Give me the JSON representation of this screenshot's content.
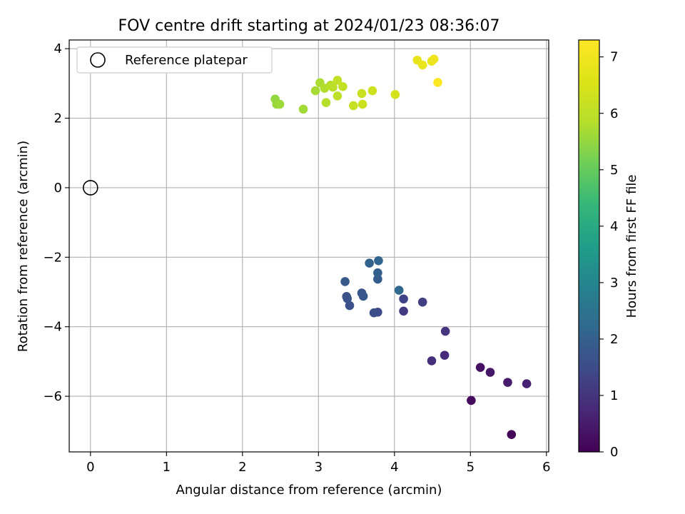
{
  "chart_data": {
    "type": "scatter",
    "title": "FOV centre drift starting at 2024/01/23 08:36:07",
    "xlabel": "Angular distance from reference (arcmin)",
    "ylabel": "Rotation from reference (arcmin)",
    "xlim": [
      -0.28,
      6.03
    ],
    "ylim": [
      -7.6,
      4.25
    ],
    "xticks": [
      0,
      1,
      2,
      3,
      4,
      5,
      6
    ],
    "yticks": [
      -6,
      -4,
      -2,
      0,
      2,
      4
    ],
    "xtick_labels": [
      "0",
      "1",
      "2",
      "3",
      "4",
      "5",
      "6"
    ],
    "ytick_labels": [
      "−6",
      "−4",
      "−2",
      "0",
      "2",
      "4"
    ],
    "grid": true,
    "legend": {
      "position": "top-left",
      "entries": [
        "Reference platepar"
      ]
    },
    "reference_point": {
      "x": 0,
      "y": 0
    },
    "colorbar": {
      "label": "Hours from first FF file",
      "min": 0,
      "max": 7.3,
      "ticks": [
        0,
        1,
        2,
        3,
        4,
        5,
        6,
        7
      ],
      "tick_labels": [
        "0",
        "1",
        "2",
        "3",
        "4",
        "5",
        "6",
        "7"
      ],
      "colormap": "viridis"
    },
    "points": [
      {
        "x": 5.54,
        "y": -7.1,
        "t": 0.1
      },
      {
        "x": 5.01,
        "y": -6.12,
        "t": 0.2
      },
      {
        "x": 5.13,
        "y": -5.17,
        "t": 0.3
      },
      {
        "x": 5.26,
        "y": -5.31,
        "t": 0.4
      },
      {
        "x": 5.49,
        "y": -5.6,
        "t": 0.5
      },
      {
        "x": 5.74,
        "y": -5.64,
        "t": 0.6
      },
      {
        "x": 4.66,
        "y": -4.82,
        "t": 0.8
      },
      {
        "x": 4.49,
        "y": -4.98,
        "t": 0.9
      },
      {
        "x": 4.67,
        "y": -4.13,
        "t": 1.0
      },
      {
        "x": 4.12,
        "y": -3.55,
        "t": 1.1
      },
      {
        "x": 4.37,
        "y": -3.29,
        "t": 1.2
      },
      {
        "x": 4.12,
        "y": -3.2,
        "t": 1.3
      },
      {
        "x": 3.78,
        "y": -3.58,
        "t": 1.5
      },
      {
        "x": 3.73,
        "y": -3.6,
        "t": 1.55
      },
      {
        "x": 3.41,
        "y": -3.39,
        "t": 1.6
      },
      {
        "x": 3.37,
        "y": -3.13,
        "t": 1.65
      },
      {
        "x": 3.38,
        "y": -3.19,
        "t": 1.7
      },
      {
        "x": 3.57,
        "y": -3.03,
        "t": 1.75
      },
      {
        "x": 3.59,
        "y": -3.12,
        "t": 1.8
      },
      {
        "x": 3.35,
        "y": -2.7,
        "t": 1.85
      },
      {
        "x": 3.78,
        "y": -2.63,
        "t": 1.9
      },
      {
        "x": 3.78,
        "y": -2.45,
        "t": 2.0
      },
      {
        "x": 3.67,
        "y": -2.17,
        "t": 2.05
      },
      {
        "x": 3.79,
        "y": -2.1,
        "t": 2.1
      },
      {
        "x": 4.06,
        "y": -2.95,
        "t": 2.2
      },
      {
        "x": 2.43,
        "y": 2.55,
        "t": 5.5
      },
      {
        "x": 2.45,
        "y": 2.4,
        "t": 5.55
      },
      {
        "x": 2.49,
        "y": 2.4,
        "t": 5.6
      },
      {
        "x": 2.8,
        "y": 2.26,
        "t": 5.65
      },
      {
        "x": 2.96,
        "y": 2.79,
        "t": 5.7
      },
      {
        "x": 3.02,
        "y": 3.02,
        "t": 5.75
      },
      {
        "x": 3.08,
        "y": 2.86,
        "t": 5.8
      },
      {
        "x": 3.1,
        "y": 2.45,
        "t": 5.85
      },
      {
        "x": 3.16,
        "y": 2.95,
        "t": 5.9
      },
      {
        "x": 3.19,
        "y": 2.89,
        "t": 5.95
      },
      {
        "x": 3.25,
        "y": 2.64,
        "t": 6.0
      },
      {
        "x": 3.25,
        "y": 3.09,
        "t": 6.05
      },
      {
        "x": 3.32,
        "y": 2.91,
        "t": 6.1
      },
      {
        "x": 3.46,
        "y": 2.36,
        "t": 6.15
      },
      {
        "x": 3.57,
        "y": 2.71,
        "t": 6.2
      },
      {
        "x": 3.58,
        "y": 2.4,
        "t": 6.25
      },
      {
        "x": 3.71,
        "y": 2.79,
        "t": 6.3
      },
      {
        "x": 4.01,
        "y": 2.68,
        "t": 6.4
      },
      {
        "x": 4.3,
        "y": 3.67,
        "t": 6.8
      },
      {
        "x": 4.37,
        "y": 3.53,
        "t": 6.85
      },
      {
        "x": 4.49,
        "y": 3.64,
        "t": 6.9
      },
      {
        "x": 4.52,
        "y": 3.7,
        "t": 6.95
      },
      {
        "x": 4.57,
        "y": 3.03,
        "t": 7.3
      }
    ]
  }
}
